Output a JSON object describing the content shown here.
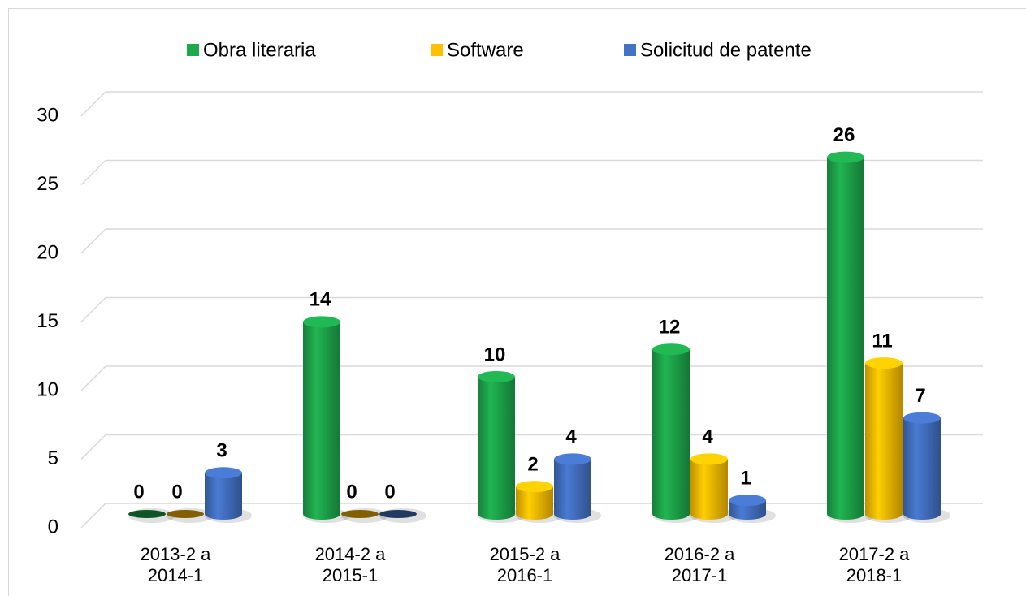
{
  "chart_data": {
    "type": "bar",
    "categories": [
      "2013-2 a 2014-1",
      "2014-2 a 2015-1",
      "2015-2 a 2016-1",
      "2016-2 a 2017-1",
      "2017-2 a 2018-1"
    ],
    "series": [
      {
        "name": "Obra literaria",
        "color": "#1ea84c",
        "values": [
          0,
          14,
          10,
          12,
          26
        ]
      },
      {
        "name": "Software",
        "color": "#ffc000",
        "values": [
          0,
          0,
          2,
          4,
          11
        ]
      },
      {
        "name": "Solicitud de patente",
        "color": "#4472c4",
        "values": [
          3,
          0,
          4,
          1,
          7
        ]
      }
    ],
    "ylim": [
      0,
      30
    ],
    "yticks": [
      0,
      5,
      10,
      15,
      20,
      25,
      30
    ],
    "grid": true,
    "legend": "top"
  }
}
